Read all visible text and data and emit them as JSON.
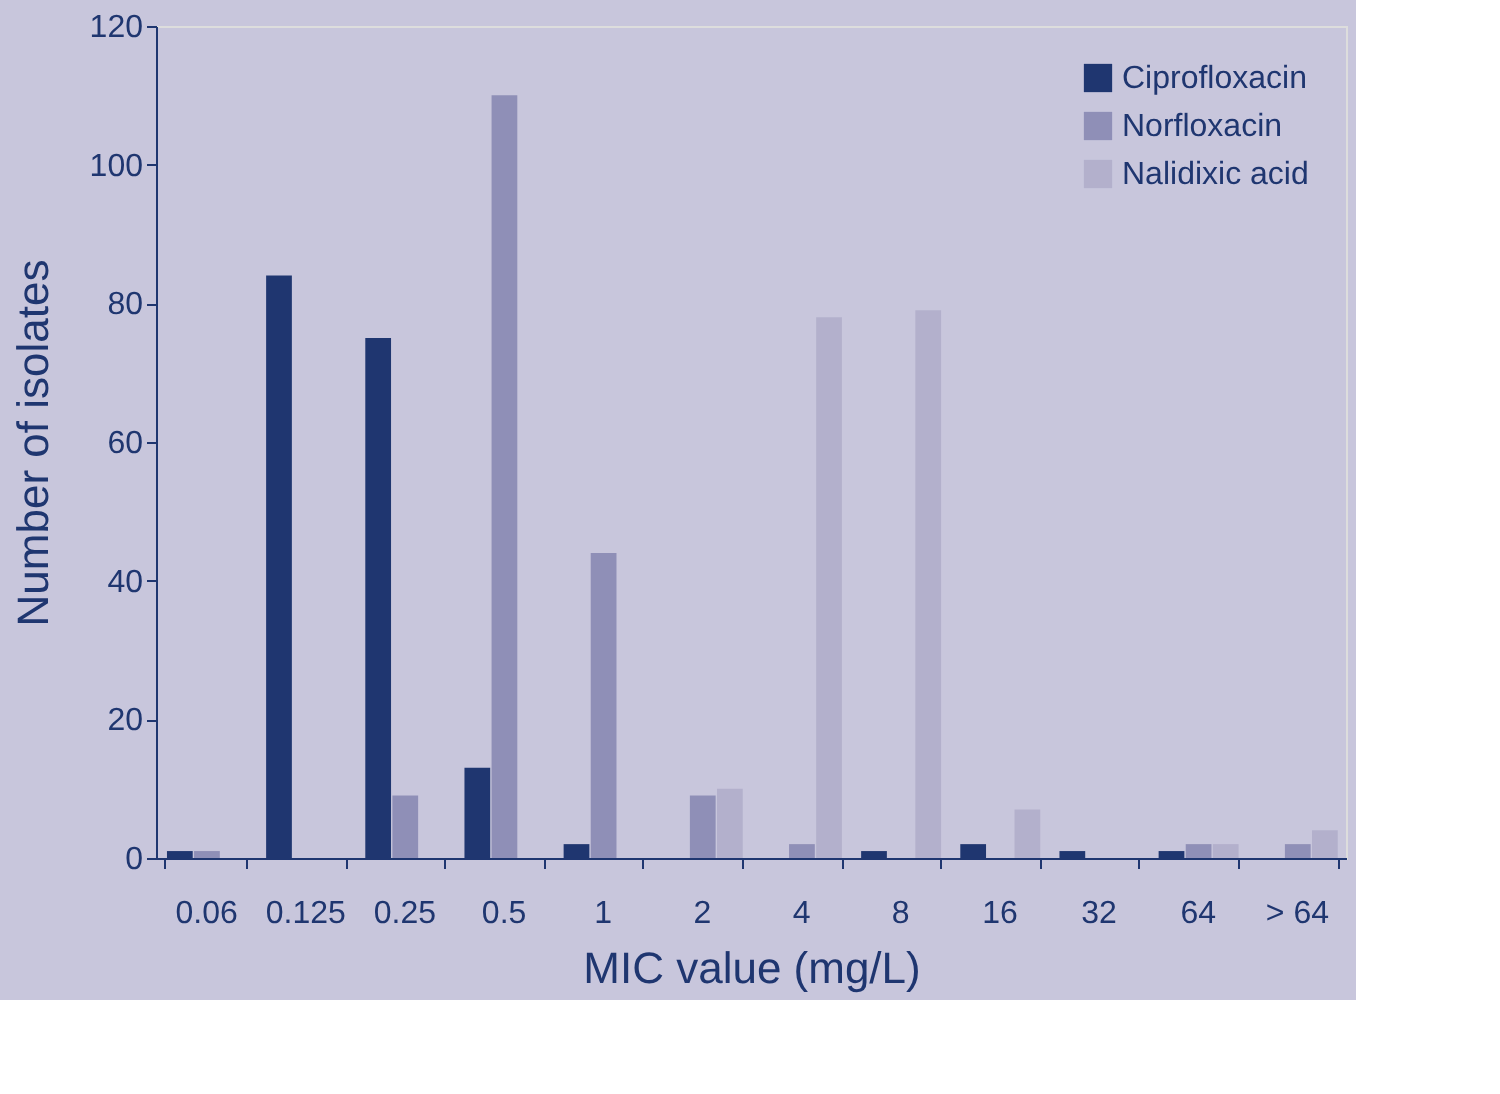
{
  "chart_data": {
    "type": "bar",
    "xlabel": "MIC value (mg/L)",
    "ylabel": "Number of isolates",
    "categories": [
      "0.06",
      "0.125",
      "0.25",
      "0.5",
      "1",
      "2",
      "4",
      "8",
      "16",
      "32",
      "64",
      "> 64"
    ],
    "series": [
      {
        "name": "Ciprofloxacin",
        "color": "#1f3670",
        "values": [
          1,
          84,
          75,
          13,
          2,
          0,
          0,
          1,
          2,
          1,
          1,
          0
        ]
      },
      {
        "name": "Norfloxacin",
        "color": "#8f8fb7",
        "values": [
          1,
          0,
          9,
          110,
          44,
          9,
          2,
          0,
          0,
          0,
          2,
          2
        ]
      },
      {
        "name": "Nalidixic acid",
        "color": "#b3b0cc",
        "values": [
          0,
          0,
          0,
          0,
          0,
          10,
          78,
          79,
          7,
          0,
          2,
          4
        ]
      }
    ],
    "ylim": [
      0,
      120
    ],
    "yticks": [
      0,
      20,
      40,
      60,
      80,
      100,
      120
    ],
    "grid": false,
    "legend": "top right"
  }
}
